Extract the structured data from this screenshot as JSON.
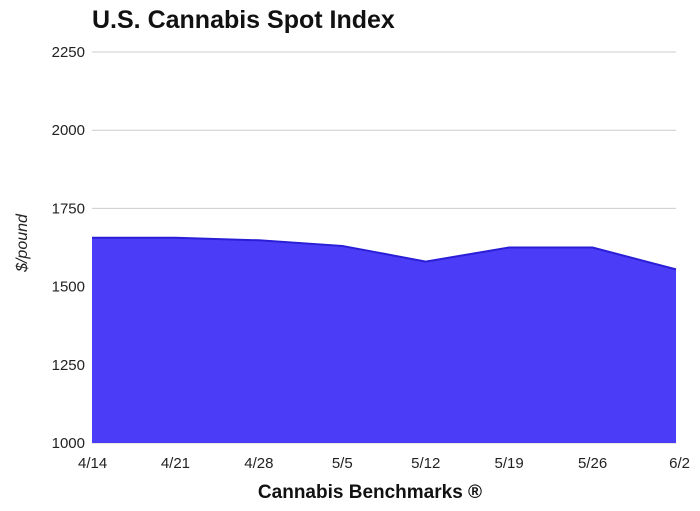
{
  "chart_data": {
    "type": "area",
    "title": "U.S. Cannabis Spot Index",
    "xlabel": "Cannabis Benchmarks ®",
    "ylabel": "$/pound",
    "categories": [
      "4/14",
      "4/21",
      "4/28",
      "5/5",
      "5/12",
      "5/19",
      "5/26",
      "6/2"
    ],
    "series": [
      {
        "values": [
          1656,
          1656,
          1648,
          1630,
          1580,
          1625,
          1625,
          1555
        ]
      }
    ],
    "ylim": [
      1000,
      2250
    ],
    "yticks": [
      1000,
      1250,
      1500,
      1750,
      2000,
      2250
    ],
    "grid": true,
    "legend": "none",
    "fill_color": "#4b3cf8",
    "line_color": "#2a1fd6"
  }
}
